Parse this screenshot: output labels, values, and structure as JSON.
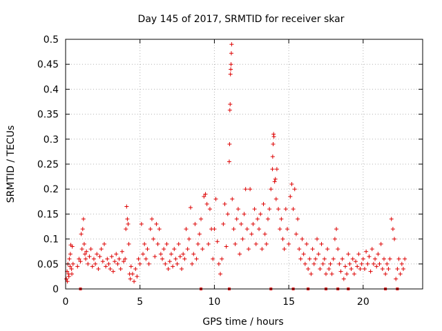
{
  "chart_data": {
    "type": "scatter",
    "title": "Day 145 of 2017, SRMTID for receiver skar",
    "xlabel": "GPS time / hours",
    "ylabel": "SRMTID / TECUs",
    "xlim": [
      0,
      24
    ],
    "ylim": [
      0,
      0.5
    ],
    "x_ticks": [
      0,
      5,
      10,
      15,
      20
    ],
    "x_tick_labels": [
      "0",
      "5",
      "10",
      "15",
      "20"
    ],
    "y_ticks": [
      0,
      0.05,
      0.1,
      0.15,
      0.2,
      0.25,
      0.3,
      0.35,
      0.4,
      0.45,
      0.5
    ],
    "y_tick_labels": [
      "0",
      "0.05",
      "0.1",
      "0.15",
      "0.2",
      "0.25",
      "0.3",
      "0.35",
      "0.4",
      "0.45",
      "0.5"
    ],
    "grid": true,
    "marker": "plus",
    "colors": {
      "series": "#dd0000",
      "grid": "#b0b0b0",
      "axis": "#000000"
    },
    "series": [
      {
        "name": "SRMTID",
        "points": [
          [
            0.05,
            0.02
          ],
          [
            0.1,
            0.035
          ],
          [
            0.15,
            0.05
          ],
          [
            0.2,
            0.03
          ],
          [
            0.25,
            0.06
          ],
          [
            0.3,
            0.045
          ],
          [
            0.35,
            0.088
          ],
          [
            0.4,
            0.04
          ],
          [
            0.45,
            0.085
          ],
          [
            0.5,
            0.05
          ],
          [
            0.12,
            0.015
          ],
          [
            0.22,
            0.025
          ],
          [
            0.32,
            0.07
          ],
          [
            0.42,
            0.03
          ],
          [
            0.8,
            0.045
          ],
          [
            0.9,
            0.06
          ],
          [
            1.0,
            0.055
          ],
          [
            1.05,
            0.11
          ],
          [
            1.1,
            0.08
          ],
          [
            1.15,
            0.12
          ],
          [
            1.2,
            0.14
          ],
          [
            1.25,
            0.09
          ],
          [
            1.3,
            0.07
          ],
          [
            1.35,
            0.06
          ],
          [
            1.4,
            0.075
          ],
          [
            1.5,
            0.05
          ],
          [
            1.6,
            0.065
          ],
          [
            1.7,
            0.08
          ],
          [
            1.8,
            0.045
          ],
          [
            1.9,
            0.06
          ],
          [
            2.0,
            0.05
          ],
          [
            2.1,
            0.07
          ],
          [
            2.2,
            0.04
          ],
          [
            2.3,
            0.065
          ],
          [
            2.4,
            0.08
          ],
          [
            2.5,
            0.055
          ],
          [
            2.6,
            0.09
          ],
          [
            2.7,
            0.045
          ],
          [
            2.8,
            0.06
          ],
          [
            2.9,
            0.05
          ],
          [
            3.0,
            0.04
          ],
          [
            3.1,
            0.065
          ],
          [
            3.2,
            0.035
          ],
          [
            3.3,
            0.055
          ],
          [
            3.4,
            0.07
          ],
          [
            3.5,
            0.05
          ],
          [
            3.6,
            0.06
          ],
          [
            3.7,
            0.04
          ],
          [
            3.8,
            0.075
          ],
          [
            3.9,
            0.055
          ],
          [
            4.0,
            0.06
          ],
          [
            4.05,
            0.12
          ],
          [
            4.1,
            0.165
          ],
          [
            4.15,
            0.14
          ],
          [
            4.2,
            0.13
          ],
          [
            4.25,
            0.09
          ],
          [
            4.3,
            0.03
          ],
          [
            4.35,
            0.02
          ],
          [
            4.4,
            0.045
          ],
          [
            4.5,
            0.03
          ],
          [
            4.6,
            0.015
          ],
          [
            4.7,
            0.04
          ],
          [
            4.8,
            0.025
          ],
          [
            4.9,
            0.06
          ],
          [
            5.0,
            0.05
          ],
          [
            5.1,
            0.13
          ],
          [
            5.2,
            0.07
          ],
          [
            5.3,
            0.09
          ],
          [
            5.4,
            0.06
          ],
          [
            5.5,
            0.08
          ],
          [
            5.6,
            0.05
          ],
          [
            5.7,
            0.12
          ],
          [
            5.8,
            0.14
          ],
          [
            5.9,
            0.1
          ],
          [
            6.0,
            0.065
          ],
          [
            6.1,
            0.13
          ],
          [
            6.2,
            0.09
          ],
          [
            6.3,
            0.12
          ],
          [
            6.4,
            0.07
          ],
          [
            6.5,
            0.06
          ],
          [
            6.6,
            0.08
          ],
          [
            6.7,
            0.05
          ],
          [
            6.8,
            0.09
          ],
          [
            6.9,
            0.04
          ],
          [
            7.0,
            0.055
          ],
          [
            7.1,
            0.07
          ],
          [
            7.2,
            0.045
          ],
          [
            7.3,
            0.08
          ],
          [
            7.4,
            0.06
          ],
          [
            7.5,
            0.05
          ],
          [
            7.6,
            0.09
          ],
          [
            7.7,
            0.065
          ],
          [
            7.8,
            0.04
          ],
          [
            7.9,
            0.07
          ],
          [
            8.0,
            0.06
          ],
          [
            8.1,
            0.12
          ],
          [
            8.2,
            0.08
          ],
          [
            8.3,
            0.1
          ],
          [
            8.4,
            0.163
          ],
          [
            8.5,
            0.05
          ],
          [
            8.6,
            0.07
          ],
          [
            8.7,
            0.13
          ],
          [
            8.8,
            0.06
          ],
          [
            8.9,
            0.09
          ],
          [
            9.0,
            0.11
          ],
          [
            9.1,
            0.14
          ],
          [
            9.2,
            0.08
          ],
          [
            9.3,
            0.185
          ],
          [
            9.4,
            0.19
          ],
          [
            9.5,
            0.17
          ],
          [
            9.6,
            0.09
          ],
          [
            9.7,
            0.16
          ],
          [
            9.8,
            0.12
          ],
          [
            9.9,
            0.06
          ],
          [
            10.0,
            0.12
          ],
          [
            10.1,
            0.18
          ],
          [
            10.2,
            0.095
          ],
          [
            10.3,
            0.05
          ],
          [
            10.4,
            0.03
          ],
          [
            10.5,
            0.06
          ],
          [
            10.6,
            0.13
          ],
          [
            10.7,
            0.17
          ],
          [
            10.8,
            0.085
          ],
          [
            10.9,
            0.15
          ],
          [
            11.0,
            0.255
          ],
          [
            11.02,
            0.29
          ],
          [
            11.04,
            0.358
          ],
          [
            11.06,
            0.37
          ],
          [
            11.08,
            0.43
          ],
          [
            11.1,
            0.44
          ],
          [
            11.12,
            0.45
          ],
          [
            11.14,
            0.472
          ],
          [
            11.16,
            0.49
          ],
          [
            11.2,
            0.18
          ],
          [
            11.3,
            0.12
          ],
          [
            11.4,
            0.09
          ],
          [
            11.5,
            0.14
          ],
          [
            11.6,
            0.16
          ],
          [
            11.7,
            0.07
          ],
          [
            11.8,
            0.13
          ],
          [
            11.9,
            0.1
          ],
          [
            12.0,
            0.15
          ],
          [
            12.1,
            0.2
          ],
          [
            12.2,
            0.12
          ],
          [
            12.3,
            0.08
          ],
          [
            12.4,
            0.2
          ],
          [
            12.5,
            0.11
          ],
          [
            12.6,
            0.13
          ],
          [
            12.7,
            0.16
          ],
          [
            12.8,
            0.09
          ],
          [
            12.9,
            0.14
          ],
          [
            13.0,
            0.12
          ],
          [
            13.1,
            0.15
          ],
          [
            13.2,
            0.08
          ],
          [
            13.3,
            0.17
          ],
          [
            13.4,
            0.11
          ],
          [
            13.5,
            0.09
          ],
          [
            13.6,
            0.14
          ],
          [
            13.7,
            0.16
          ],
          [
            13.8,
            0.2
          ],
          [
            13.9,
            0.24
          ],
          [
            13.92,
            0.265
          ],
          [
            13.95,
            0.29
          ],
          [
            13.98,
            0.31
          ],
          [
            14.0,
            0.305
          ],
          [
            14.05,
            0.215
          ],
          [
            14.1,
            0.22
          ],
          [
            14.15,
            0.18
          ],
          [
            14.2,
            0.24
          ],
          [
            14.3,
            0.16
          ],
          [
            14.4,
            0.12
          ],
          [
            14.5,
            0.14
          ],
          [
            14.6,
            0.1
          ],
          [
            14.7,
            0.08
          ],
          [
            14.8,
            0.16
          ],
          [
            14.9,
            0.12
          ],
          [
            15.0,
            0.09
          ],
          [
            15.1,
            0.185
          ],
          [
            15.2,
            0.21
          ],
          [
            15.3,
            0.16
          ],
          [
            15.4,
            0.2
          ],
          [
            15.5,
            0.11
          ],
          [
            15.6,
            0.14
          ],
          [
            15.7,
            0.08
          ],
          [
            15.8,
            0.06
          ],
          [
            15.9,
            0.1
          ],
          [
            16.0,
            0.07
          ],
          [
            16.1,
            0.05
          ],
          [
            16.2,
            0.09
          ],
          [
            16.3,
            0.04
          ],
          [
            16.4,
            0.06
          ],
          [
            16.5,
            0.03
          ],
          [
            16.6,
            0.08
          ],
          [
            16.7,
            0.05
          ],
          [
            16.8,
            0.06
          ],
          [
            16.9,
            0.1
          ],
          [
            17.0,
            0.07
          ],
          [
            17.1,
            0.04
          ],
          [
            17.2,
            0.09
          ],
          [
            17.3,
            0.05
          ],
          [
            17.4,
            0.06
          ],
          [
            17.5,
            0.03
          ],
          [
            17.6,
            0.08
          ],
          [
            17.7,
            0.04
          ],
          [
            17.8,
            0.05
          ],
          [
            17.9,
            0.03
          ],
          [
            18.0,
            0.06
          ],
          [
            18.1,
            0.1
          ],
          [
            18.2,
            0.12
          ],
          [
            18.3,
            0.08
          ],
          [
            18.4,
            0.05
          ],
          [
            18.5,
            0.035
          ],
          [
            18.6,
            0.06
          ],
          [
            18.7,
            0.02
          ],
          [
            18.8,
            0.045
          ],
          [
            18.9,
            0.03
          ],
          [
            19.0,
            0.07
          ],
          [
            19.1,
            0.05
          ],
          [
            19.2,
            0.04
          ],
          [
            19.3,
            0.06
          ],
          [
            19.4,
            0.03
          ],
          [
            19.5,
            0.055
          ],
          [
            19.6,
            0.045
          ],
          [
            19.7,
            0.07
          ],
          [
            19.8,
            0.04
          ],
          [
            19.9,
            0.05
          ],
          [
            20.0,
            0.06
          ],
          [
            20.1,
            0.04
          ],
          [
            20.2,
            0.075
          ],
          [
            20.3,
            0.05
          ],
          [
            20.4,
            0.065
          ],
          [
            20.5,
            0.035
          ],
          [
            20.6,
            0.08
          ],
          [
            20.7,
            0.05
          ],
          [
            20.8,
            0.06
          ],
          [
            20.9,
            0.045
          ],
          [
            21.0,
            0.07
          ],
          [
            21.1,
            0.05
          ],
          [
            21.2,
            0.09
          ],
          [
            21.3,
            0.04
          ],
          [
            21.4,
            0.06
          ],
          [
            21.5,
            0.03
          ],
          [
            21.6,
            0.05
          ],
          [
            21.7,
            0.04
          ],
          [
            21.8,
            0.06
          ],
          [
            21.9,
            0.14
          ],
          [
            22.0,
            0.12
          ],
          [
            22.1,
            0.1
          ],
          [
            22.2,
            0.02
          ],
          [
            22.3,
            0.04
          ],
          [
            22.4,
            0.06
          ],
          [
            22.5,
            0.03
          ],
          [
            22.6,
            0.05
          ],
          [
            22.7,
            0.04
          ],
          [
            22.8,
            0.06
          ]
        ],
        "zero_markers_x": [
          1.0,
          9.1,
          11.0,
          13.8,
          15.3,
          16.3,
          17.5,
          18.3,
          19.0,
          21.5,
          22.3
        ]
      }
    ]
  }
}
